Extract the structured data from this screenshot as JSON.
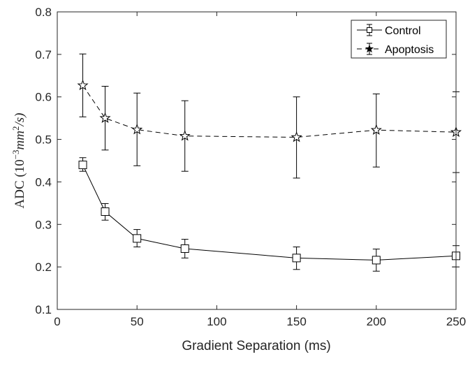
{
  "chart_data": {
    "type": "line",
    "xlabel": "Gradient Separation (ms)",
    "ylabel": {
      "prefix": "ADC (10",
      "exp": "−3",
      "unit": "mm",
      "unit_exp": "2",
      "suffix": "/s)"
    },
    "xlim": [
      0,
      250
    ],
    "ylim": [
      0.1,
      0.8
    ],
    "xticks": [
      0,
      50,
      100,
      150,
      200,
      250
    ],
    "xtick_labels": [
      "0",
      "50",
      "100",
      "150",
      "200",
      "250"
    ],
    "yticks": [
      0.1,
      0.2,
      0.3,
      0.4,
      0.5,
      0.6,
      0.7,
      0.8
    ],
    "ytick_labels": [
      "0.1",
      "0.2",
      "0.3",
      "0.4",
      "0.5",
      "0.6",
      "0.7",
      "0.8"
    ],
    "grid": false,
    "legend_position": "top-right",
    "x": [
      16,
      30,
      50,
      80,
      150,
      200,
      250
    ],
    "series": [
      {
        "name": "Control",
        "marker": "square",
        "line_style": "solid",
        "values": [
          0.44,
          0.33,
          0.267,
          0.243,
          0.221,
          0.216,
          0.226
        ],
        "err_low": [
          0.425,
          0.31,
          0.247,
          0.221,
          0.194,
          0.19,
          0.2
        ],
        "err_high": [
          0.457,
          0.349,
          0.288,
          0.265,
          0.247,
          0.242,
          0.25
        ]
      },
      {
        "name": "Apoptosis",
        "marker": "star",
        "line_style": "dashed",
        "values": [
          0.627,
          0.55,
          0.523,
          0.508,
          0.505,
          0.522,
          0.517
        ],
        "err_low": [
          0.553,
          0.475,
          0.438,
          0.425,
          0.409,
          0.435,
          0.422
        ],
        "err_high": [
          0.701,
          0.625,
          0.609,
          0.591,
          0.6,
          0.607,
          0.612
        ]
      }
    ],
    "colors": {
      "line": "#000000",
      "axis": "#262626"
    }
  }
}
